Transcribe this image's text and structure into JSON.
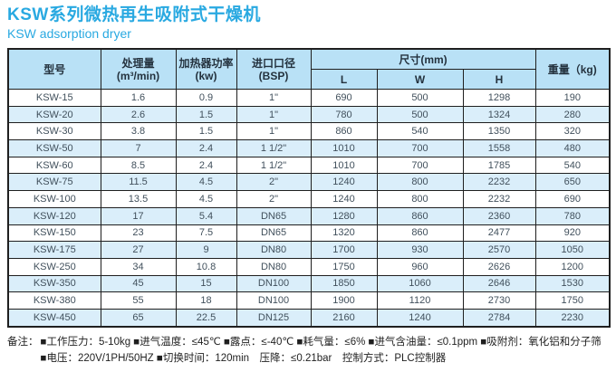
{
  "page": {
    "title": "KSW系列微热再生吸附式干燥机",
    "subtitle": "KSW adsorption dryer"
  },
  "table": {
    "headers": {
      "model": "型号",
      "capacity_line1": "处理量",
      "capacity_line2": "(m³/min)",
      "heater_line1": "加热器功率",
      "heater_line2": "(kw)",
      "inlet_line1": "进口口径",
      "inlet_line2": "(BSP)",
      "dimensions": "尺寸(mm)",
      "dim_l": "L",
      "dim_w": "W",
      "dim_h": "H",
      "weight": "重量（kg)"
    },
    "rows": [
      {
        "model": "KSW-15",
        "capacity": "1.6",
        "power": "0.9",
        "inlet": "1\"",
        "l": "690",
        "w": "500",
        "h": "1298",
        "weight": "190"
      },
      {
        "model": "KSW-20",
        "capacity": "2.6",
        "power": "1.5",
        "inlet": "1\"",
        "l": "780",
        "w": "500",
        "h": "1324",
        "weight": "280"
      },
      {
        "model": "KSW-30",
        "capacity": "3.8",
        "power": "1.5",
        "inlet": "1\"",
        "l": "860",
        "w": "540",
        "h": "1350",
        "weight": "320"
      },
      {
        "model": "KSW-50",
        "capacity": "7",
        "power": "2.4",
        "inlet": "1 1/2\"",
        "l": "1010",
        "w": "700",
        "h": "1558",
        "weight": "480"
      },
      {
        "model": "KSW-60",
        "capacity": "8.5",
        "power": "2.4",
        "inlet": "1 1/2\"",
        "l": "1010",
        "w": "700",
        "h": "1785",
        "weight": "540"
      },
      {
        "model": "KSW-75",
        "capacity": "11.5",
        "power": "4.5",
        "inlet": "2\"",
        "l": "1240",
        "w": "800",
        "h": "2232",
        "weight": "650"
      },
      {
        "model": "KSW-100",
        "capacity": "13.5",
        "power": "4.5",
        "inlet": "2\"",
        "l": "1240",
        "w": "800",
        "h": "2232",
        "weight": "690"
      },
      {
        "model": "KSW-120",
        "capacity": "17",
        "power": "5.4",
        "inlet": "DN65",
        "l": "1280",
        "w": "860",
        "h": "2360",
        "weight": "780"
      },
      {
        "model": "KSW-150",
        "capacity": "23",
        "power": "7.5",
        "inlet": "DN65",
        "l": "1320",
        "w": "860",
        "h": "2477",
        "weight": "920"
      },
      {
        "model": "KSW-175",
        "capacity": "27",
        "power": "9",
        "inlet": "DN80",
        "l": "1700",
        "w": "930",
        "h": "2570",
        "weight": "1050"
      },
      {
        "model": "KSW-250",
        "capacity": "34",
        "power": "10.8",
        "inlet": "DN80",
        "l": "1750",
        "w": "960",
        "h": "2626",
        "weight": "1200"
      },
      {
        "model": "KSW-350",
        "capacity": "45",
        "power": "15",
        "inlet": "DN100",
        "l": "1850",
        "w": "1060",
        "h": "2646",
        "weight": "1530"
      },
      {
        "model": "KSW-380",
        "capacity": "55",
        "power": "18",
        "inlet": "DN100",
        "l": "1900",
        "w": "1120",
        "h": "2730",
        "weight": "1750"
      },
      {
        "model": "KSW-450",
        "capacity": "65",
        "power": "22.5",
        "inlet": "DN125",
        "l": "2160",
        "w": "1240",
        "h": "2784",
        "weight": "2230"
      }
    ]
  },
  "notes": {
    "label": "备注：",
    "line1": "■工作压力：5-10kg ■进气温度：≤45℃ ■露点：≤-40℃ ■耗气量：≤6% ■进气含油量：≤0.1ppm ■吸附剂：氧化铝和分子筛",
    "line2": "■电压：220V/1PH/50HZ ■切换时间：120min　压降：≤0.21bar　控制方式：PLC控制器"
  },
  "colors": {
    "accent_blue": "#29a9e1",
    "header_bg": "#b9e1f6",
    "alt_row_bg": "#daeefa",
    "border": "#1f1f1f"
  }
}
